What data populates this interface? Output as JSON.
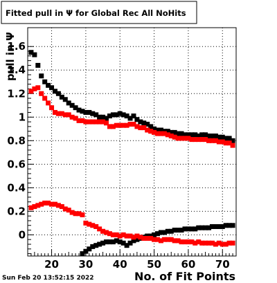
{
  "chart_data": {
    "type": "scatter",
    "title": "Fitted pull in  Ψ  for Global Rec All NoHits",
    "xlabel": "No. of Fit Points",
    "ylabel": "pull in Ψ",
    "timestamp": "Sun Feb 20 13:52:15 2022",
    "xlim": [
      13,
      74
    ],
    "ylim": [
      -0.18,
      1.76
    ],
    "grid": true,
    "legend": "none",
    "x_ticks": [
      20,
      30,
      40,
      50,
      60,
      70
    ],
    "y_ticks": [
      0,
      0.2,
      0.4,
      0.6,
      0.8,
      1,
      1.2,
      1.4,
      1.6
    ],
    "x_tick_labels": [
      "20",
      "30",
      "40",
      "50",
      "60",
      "70"
    ],
    "y_tick_labels": [
      "0",
      "0.2",
      "0.4",
      "0.6",
      "0.8",
      "1",
      "1.2",
      "1.4",
      "1.6"
    ],
    "marker_shape": "square",
    "series": [
      {
        "color": "#000000",
        "x": [
          14,
          15,
          16,
          17,
          18,
          19,
          20,
          21,
          22,
          23,
          24,
          25,
          26,
          27,
          28,
          29,
          30,
          31,
          32,
          33,
          34,
          35,
          36,
          37,
          38,
          39,
          40,
          41,
          42,
          43,
          44,
          45,
          46,
          47,
          48,
          49,
          50,
          51,
          52,
          53,
          54,
          55,
          56,
          57,
          58,
          59,
          60,
          61,
          62,
          63,
          64,
          65,
          66,
          67,
          68,
          69,
          70,
          71,
          72,
          73
        ],
        "y": [
          1.55,
          1.53,
          1.44,
          1.35,
          1.3,
          1.27,
          1.25,
          1.22,
          1.2,
          1.17,
          1.15,
          1.12,
          1.1,
          1.08,
          1.06,
          1.05,
          1.04,
          1.04,
          1.03,
          1.02,
          1.0,
          1.0,
          0.99,
          1.01,
          1.02,
          1.02,
          1.03,
          1.02,
          1.01,
          0.99,
          1.01,
          0.98,
          0.96,
          0.95,
          0.94,
          0.92,
          0.9,
          0.89,
          0.89,
          0.88,
          0.88,
          0.87,
          0.87,
          0.86,
          0.86,
          0.85,
          0.85,
          0.85,
          0.85,
          0.84,
          0.85,
          0.85,
          0.84,
          0.84,
          0.84,
          0.83,
          0.83,
          0.82,
          0.82,
          0.8
        ]
      },
      {
        "color": "#ff0000",
        "x": [
          14,
          15,
          16,
          17,
          18,
          19,
          20,
          21,
          22,
          23,
          24,
          25,
          26,
          27,
          28,
          29,
          30,
          31,
          32,
          33,
          34,
          35,
          36,
          37,
          38,
          39,
          40,
          41,
          42,
          43,
          44,
          45,
          46,
          47,
          48,
          49,
          50,
          51,
          52,
          53,
          54,
          55,
          56,
          57,
          58,
          59,
          60,
          61,
          62,
          63,
          64,
          65,
          66,
          67,
          68,
          69,
          70,
          71,
          72,
          73
        ],
        "y": [
          1.22,
          1.24,
          1.25,
          1.2,
          1.16,
          1.12,
          1.08,
          1.04,
          1.03,
          1.03,
          1.02,
          1.02,
          1.0,
          0.99,
          0.97,
          0.97,
          0.96,
          0.96,
          0.96,
          0.96,
          0.96,
          0.96,
          0.95,
          0.92,
          0.92,
          0.93,
          0.93,
          0.93,
          0.93,
          0.94,
          0.94,
          0.92,
          0.91,
          0.91,
          0.89,
          0.88,
          0.87,
          0.86,
          0.86,
          0.86,
          0.85,
          0.84,
          0.83,
          0.82,
          0.82,
          0.82,
          0.82,
          0.81,
          0.81,
          0.81,
          0.81,
          0.81,
          0.8,
          0.8,
          0.8,
          0.79,
          0.79,
          0.78,
          0.78,
          0.76
        ]
      },
      {
        "color": "#000000",
        "x": [
          29,
          30,
          31,
          32,
          33,
          34,
          35,
          36,
          37,
          38,
          39,
          40,
          41,
          42,
          43,
          44,
          45,
          46,
          47,
          48,
          49,
          50,
          51,
          52,
          53,
          54,
          55,
          56,
          57,
          58,
          59,
          60,
          61,
          62,
          63,
          64,
          65,
          66,
          67,
          68,
          69,
          70,
          71,
          72,
          73
        ],
        "y": [
          -0.16,
          -0.14,
          -0.12,
          -0.1,
          -0.09,
          -0.08,
          -0.07,
          -0.06,
          -0.06,
          -0.06,
          -0.05,
          -0.06,
          -0.07,
          -0.09,
          -0.07,
          -0.05,
          -0.04,
          -0.03,
          -0.02,
          -0.01,
          -0.01,
          0.0,
          0.01,
          0.02,
          0.02,
          0.03,
          0.03,
          0.04,
          0.04,
          0.04,
          0.05,
          0.05,
          0.05,
          0.05,
          0.06,
          0.06,
          0.06,
          0.06,
          0.07,
          0.07,
          0.07,
          0.07,
          0.08,
          0.08,
          0.08
        ]
      },
      {
        "color": "#ff0000",
        "x": [
          14,
          15,
          16,
          17,
          18,
          19,
          20,
          21,
          22,
          23,
          24,
          25,
          26,
          27,
          28,
          29,
          30,
          31,
          32,
          33,
          34,
          35,
          36,
          37,
          38,
          39,
          40,
          41,
          42,
          43,
          44,
          45,
          46,
          47,
          48,
          49,
          50,
          51,
          52,
          53,
          54,
          55,
          56,
          57,
          58,
          59,
          60,
          61,
          62,
          63,
          64,
          65,
          66,
          67,
          68,
          69,
          70,
          71,
          72,
          73
        ],
        "y": [
          0.23,
          0.24,
          0.25,
          0.26,
          0.27,
          0.27,
          0.26,
          0.26,
          0.25,
          0.24,
          0.22,
          0.21,
          0.19,
          0.18,
          0.18,
          0.17,
          0.1,
          0.09,
          0.08,
          0.07,
          0.05,
          0.03,
          0.02,
          0.01,
          0.0,
          0.0,
          -0.01,
          0.0,
          -0.01,
          -0.01,
          -0.02,
          -0.01,
          -0.02,
          -0.03,
          -0.03,
          -0.03,
          -0.04,
          -0.04,
          -0.05,
          -0.04,
          -0.04,
          -0.04,
          -0.05,
          -0.05,
          -0.06,
          -0.06,
          -0.06,
          -0.06,
          -0.07,
          -0.06,
          -0.07,
          -0.07,
          -0.07,
          -0.07,
          -0.08,
          -0.07,
          -0.08,
          -0.08,
          -0.07,
          -0.07
        ]
      }
    ]
  }
}
